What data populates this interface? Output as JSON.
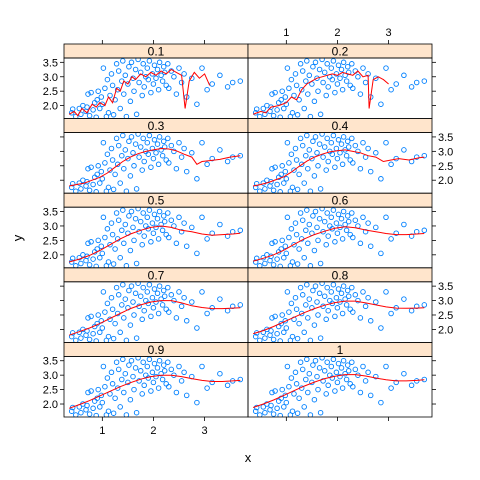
{
  "chart_data": {
    "type": "scatter",
    "layout": {
      "columns": 2,
      "rows": 5,
      "panel_order": "bottom-left first, left to right, then upward"
    },
    "xlabel": "x",
    "ylabel": "y",
    "xlim": [
      0.25,
      3.85
    ],
    "ylim": [
      1.55,
      3.65
    ],
    "x_ticks": [
      1,
      2,
      3
    ],
    "y_ticks": [
      2.0,
      2.5,
      3.0,
      3.5
    ],
    "y_tick_labels": [
      "2.0",
      "2.5",
      "3.0",
      "3.5"
    ],
    "colors": {
      "points": "#0080ff",
      "smooth_line": "#ff0000",
      "strip_bg": "#ffe5cc",
      "frame": "#000000"
    },
    "grid": false,
    "legend": "none",
    "panels": [
      {
        "strip": "0.9"
      },
      {
        "strip": "1"
      },
      {
        "strip": "0.7"
      },
      {
        "strip": "0.8"
      },
      {
        "strip": "0.5"
      },
      {
        "strip": "0.6"
      },
      {
        "strip": "0.3"
      },
      {
        "strip": "0.4"
      },
      {
        "strip": "0.1"
      },
      {
        "strip": "0.2"
      }
    ],
    "points": [
      [
        0.4,
        1.75
      ],
      [
        0.42,
        1.88
      ],
      [
        0.48,
        1.62
      ],
      [
        0.55,
        1.9
      ],
      [
        0.58,
        1.7
      ],
      [
        0.62,
        2.0
      ],
      [
        0.68,
        1.8
      ],
      [
        0.7,
        1.95
      ],
      [
        0.72,
        2.4
      ],
      [
        0.75,
        1.65
      ],
      [
        0.78,
        2.45
      ],
      [
        0.82,
        1.85
      ],
      [
        0.85,
        2.1
      ],
      [
        0.88,
        1.6
      ],
      [
        0.9,
        2.2
      ],
      [
        0.92,
        2.5
      ],
      [
        0.95,
        1.9
      ],
      [
        0.98,
        2.3
      ],
      [
        1.0,
        2.05
      ],
      [
        1.02,
        3.3
      ],
      [
        1.05,
        2.6
      ],
      [
        1.08,
        1.62
      ],
      [
        1.1,
        2.9
      ],
      [
        1.12,
        1.75
      ],
      [
        1.15,
        2.35
      ],
      [
        1.18,
        3.1
      ],
      [
        1.2,
        2.7
      ],
      [
        1.22,
        1.68
      ],
      [
        1.25,
        2.2
      ],
      [
        1.28,
        3.45
      ],
      [
        1.3,
        2.55
      ],
      [
        1.32,
        3.2
      ],
      [
        1.35,
        1.9
      ],
      [
        1.38,
        2.85
      ],
      [
        1.4,
        3.55
      ],
      [
        1.42,
        2.4
      ],
      [
        1.45,
        3.05
      ],
      [
        1.47,
        1.62
      ],
      [
        1.5,
        2.75
      ],
      [
        1.52,
        3.35
      ],
      [
        1.55,
        2.15
      ],
      [
        1.57,
        3.5
      ],
      [
        1.6,
        2.95
      ],
      [
        1.62,
        2.5
      ],
      [
        1.65,
        3.25
      ],
      [
        1.67,
        1.7
      ],
      [
        1.7,
        3.6
      ],
      [
        1.72,
        2.8
      ],
      [
        1.75,
        3.15
      ],
      [
        1.78,
        2.35
      ],
      [
        1.8,
        3.45
      ],
      [
        1.82,
        2.65
      ],
      [
        1.85,
        3.0
      ],
      [
        1.88,
        3.3
      ],
      [
        1.9,
        2.9
      ],
      [
        1.92,
        3.55
      ],
      [
        1.95,
        2.45
      ],
      [
        1.98,
        3.1
      ],
      [
        2.0,
        2.75
      ],
      [
        2.02,
        3.4
      ],
      [
        2.05,
        2.95
      ],
      [
        2.08,
        3.25
      ],
      [
        2.1,
        2.55
      ],
      [
        2.12,
        3.5
      ],
      [
        2.15,
        3.05
      ],
      [
        2.18,
        2.85
      ],
      [
        2.2,
        3.35
      ],
      [
        2.22,
        3.15
      ],
      [
        2.25,
        2.7
      ],
      [
        2.28,
        3.45
      ],
      [
        2.3,
        2.6
      ],
      [
        2.35,
        3.2
      ],
      [
        2.4,
        3.0
      ],
      [
        2.45,
        2.4
      ],
      [
        2.5,
        3.3
      ],
      [
        2.55,
        2.8
      ],
      [
        2.6,
        3.1
      ],
      [
        2.65,
        2.3
      ],
      [
        2.75,
        2.95
      ],
      [
        2.85,
        2.05
      ],
      [
        2.95,
        3.3
      ],
      [
        3.05,
        2.55
      ],
      [
        3.15,
        2.75
      ],
      [
        3.3,
        3.05
      ],
      [
        3.45,
        2.65
      ],
      [
        3.55,
        2.8
      ],
      [
        3.7,
        2.85
      ]
    ],
    "smooth_lines": {
      "0.1": [
        [
          0.35,
          1.7
        ],
        [
          0.45,
          1.8
        ],
        [
          0.52,
          1.65
        ],
        [
          0.6,
          1.9
        ],
        [
          0.7,
          1.75
        ],
        [
          0.8,
          2.05
        ],
        [
          0.88,
          1.95
        ],
        [
          0.95,
          2.1
        ],
        [
          1.05,
          2.0
        ],
        [
          1.12,
          2.3
        ],
        [
          1.2,
          2.1
        ],
        [
          1.28,
          2.6
        ],
        [
          1.35,
          2.5
        ],
        [
          1.42,
          2.85
        ],
        [
          1.5,
          2.75
        ],
        [
          1.58,
          3.0
        ],
        [
          1.65,
          2.9
        ],
        [
          1.75,
          3.1
        ],
        [
          1.85,
          3.0
        ],
        [
          1.95,
          3.15
        ],
        [
          2.05,
          3.05
        ],
        [
          2.15,
          3.2
        ],
        [
          2.25,
          3.1
        ],
        [
          2.35,
          3.25
        ],
        [
          2.45,
          3.15
        ],
        [
          2.55,
          3.05
        ],
        [
          2.62,
          1.9
        ],
        [
          2.7,
          2.85
        ],
        [
          2.8,
          3.15
        ],
        [
          2.9,
          2.95
        ],
        [
          3.0,
          3.1
        ],
        [
          3.1,
          2.7
        ]
      ],
      "0.2": [
        [
          0.35,
          1.7
        ],
        [
          0.5,
          1.8
        ],
        [
          0.6,
          1.75
        ],
        [
          0.7,
          1.95
        ],
        [
          0.85,
          2.0
        ],
        [
          1.0,
          2.1
        ],
        [
          1.1,
          2.3
        ],
        [
          1.2,
          2.2
        ],
        [
          1.3,
          2.55
        ],
        [
          1.4,
          2.75
        ],
        [
          1.5,
          2.85
        ],
        [
          1.6,
          2.95
        ],
        [
          1.7,
          3.0
        ],
        [
          1.8,
          3.05
        ],
        [
          1.9,
          3.1
        ],
        [
          2.0,
          3.05
        ],
        [
          2.1,
          3.15
        ],
        [
          2.2,
          3.1
        ],
        [
          2.3,
          3.05
        ],
        [
          2.4,
          3.2
        ],
        [
          2.5,
          3.0
        ],
        [
          2.6,
          3.05
        ],
        [
          2.62,
          1.9
        ],
        [
          2.7,
          2.9
        ],
        [
          2.8,
          3.0
        ],
        [
          2.9,
          2.9
        ],
        [
          3.0,
          2.75
        ]
      ],
      "0.3": [
        [
          0.35,
          1.8
        ],
        [
          0.5,
          1.85
        ],
        [
          0.65,
          1.9
        ],
        [
          0.8,
          2.0
        ],
        [
          0.95,
          2.1
        ],
        [
          1.1,
          2.25
        ],
        [
          1.25,
          2.45
        ],
        [
          1.4,
          2.65
        ],
        [
          1.55,
          2.8
        ],
        [
          1.7,
          2.92
        ],
        [
          1.85,
          3.0
        ],
        [
          2.0,
          3.05
        ],
        [
          2.15,
          3.1
        ],
        [
          2.3,
          3.08
        ],
        [
          2.45,
          3.02
        ],
        [
          2.6,
          2.9
        ],
        [
          2.75,
          2.8
        ],
        [
          2.85,
          2.55
        ],
        [
          2.95,
          2.65
        ],
        [
          3.1,
          2.68
        ],
        [
          3.3,
          2.72
        ],
        [
          3.5,
          2.8
        ],
        [
          3.7,
          2.85
        ]
      ],
      "0.4": [
        [
          0.35,
          1.8
        ],
        [
          0.5,
          1.85
        ],
        [
          0.65,
          1.92
        ],
        [
          0.8,
          2.02
        ],
        [
          0.95,
          2.12
        ],
        [
          1.1,
          2.28
        ],
        [
          1.25,
          2.48
        ],
        [
          1.4,
          2.66
        ],
        [
          1.55,
          2.8
        ],
        [
          1.7,
          2.9
        ],
        [
          1.85,
          2.98
        ],
        [
          2.0,
          3.02
        ],
        [
          2.15,
          3.05
        ],
        [
          2.3,
          3.0
        ],
        [
          2.45,
          2.95
        ],
        [
          2.6,
          2.85
        ],
        [
          2.75,
          2.8
        ],
        [
          2.9,
          2.65
        ],
        [
          3.05,
          2.7
        ],
        [
          3.2,
          2.75
        ],
        [
          3.4,
          2.7
        ],
        [
          3.6,
          2.78
        ],
        [
          3.7,
          2.8
        ]
      ],
      "0.5": [
        [
          0.35,
          1.75
        ],
        [
          0.55,
          1.85
        ],
        [
          0.75,
          1.98
        ],
        [
          0.95,
          2.15
        ],
        [
          1.15,
          2.35
        ],
        [
          1.35,
          2.55
        ],
        [
          1.55,
          2.72
        ],
        [
          1.75,
          2.85
        ],
        [
          1.95,
          2.95
        ],
        [
          2.15,
          3.0
        ],
        [
          2.35,
          2.95
        ],
        [
          2.55,
          2.85
        ],
        [
          2.75,
          2.8
        ],
        [
          2.95,
          2.72
        ],
        [
          3.15,
          2.68
        ],
        [
          3.35,
          2.7
        ],
        [
          3.55,
          2.72
        ],
        [
          3.7,
          2.75
        ]
      ],
      "0.6": [
        [
          0.35,
          1.78
        ],
        [
          0.55,
          1.88
        ],
        [
          0.75,
          2.0
        ],
        [
          0.95,
          2.16
        ],
        [
          1.15,
          2.36
        ],
        [
          1.35,
          2.55
        ],
        [
          1.55,
          2.7
        ],
        [
          1.75,
          2.82
        ],
        [
          1.95,
          2.92
        ],
        [
          2.15,
          2.97
        ],
        [
          2.35,
          2.94
        ],
        [
          2.55,
          2.86
        ],
        [
          2.75,
          2.8
        ],
        [
          2.95,
          2.74
        ],
        [
          3.15,
          2.7
        ],
        [
          3.35,
          2.7
        ],
        [
          3.55,
          2.72
        ],
        [
          3.7,
          2.74
        ]
      ],
      "0.7": [
        [
          0.35,
          1.8
        ],
        [
          0.55,
          1.92
        ],
        [
          0.75,
          2.05
        ],
        [
          0.95,
          2.2
        ],
        [
          1.15,
          2.38
        ],
        [
          1.35,
          2.55
        ],
        [
          1.55,
          2.72
        ],
        [
          1.75,
          2.85
        ],
        [
          1.95,
          2.95
        ],
        [
          2.15,
          3.0
        ],
        [
          2.35,
          3.0
        ],
        [
          2.55,
          2.92
        ],
        [
          2.75,
          2.82
        ],
        [
          2.95,
          2.76
        ],
        [
          3.15,
          2.72
        ],
        [
          3.35,
          2.72
        ],
        [
          3.55,
          2.74
        ],
        [
          3.7,
          2.75
        ]
      ],
      "0.8": [
        [
          0.35,
          1.85
        ],
        [
          0.55,
          1.96
        ],
        [
          0.75,
          2.1
        ],
        [
          0.95,
          2.26
        ],
        [
          1.15,
          2.42
        ],
        [
          1.35,
          2.58
        ],
        [
          1.55,
          2.72
        ],
        [
          1.75,
          2.84
        ],
        [
          1.95,
          2.93
        ],
        [
          2.15,
          2.98
        ],
        [
          2.35,
          2.98
        ],
        [
          2.55,
          2.92
        ],
        [
          2.75,
          2.85
        ],
        [
          2.95,
          2.78
        ],
        [
          3.15,
          2.74
        ],
        [
          3.35,
          2.73
        ],
        [
          3.55,
          2.74
        ],
        [
          3.7,
          2.75
        ]
      ],
      "0.9": [
        [
          0.35,
          1.85
        ],
        [
          0.55,
          1.98
        ],
        [
          0.75,
          2.12
        ],
        [
          0.95,
          2.28
        ],
        [
          1.15,
          2.44
        ],
        [
          1.35,
          2.6
        ],
        [
          1.55,
          2.74
        ],
        [
          1.75,
          2.86
        ],
        [
          1.95,
          2.95
        ],
        [
          2.15,
          3.0
        ],
        [
          2.35,
          3.0
        ],
        [
          2.55,
          2.95
        ],
        [
          2.75,
          2.88
        ],
        [
          2.95,
          2.82
        ],
        [
          3.15,
          2.78
        ],
        [
          3.35,
          2.78
        ],
        [
          3.55,
          2.8
        ],
        [
          3.7,
          2.82
        ]
      ],
      "1": [
        [
          0.35,
          1.88
        ],
        [
          0.55,
          2.0
        ],
        [
          0.75,
          2.14
        ],
        [
          0.95,
          2.3
        ],
        [
          1.15,
          2.46
        ],
        [
          1.35,
          2.62
        ],
        [
          1.55,
          2.76
        ],
        [
          1.75,
          2.88
        ],
        [
          1.95,
          2.96
        ],
        [
          2.15,
          3.02
        ],
        [
          2.35,
          3.02
        ],
        [
          2.55,
          2.97
        ],
        [
          2.75,
          2.9
        ],
        [
          2.95,
          2.84
        ],
        [
          3.15,
          2.8
        ],
        [
          3.35,
          2.8
        ],
        [
          3.55,
          2.82
        ],
        [
          3.7,
          2.84
        ]
      ]
    }
  }
}
